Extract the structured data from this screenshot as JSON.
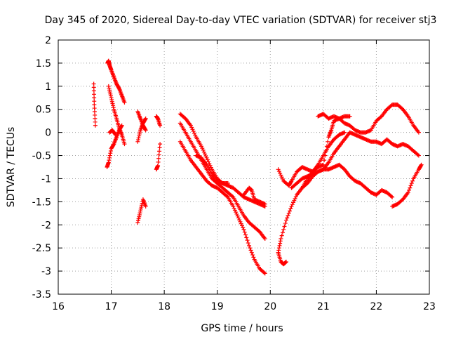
{
  "chart_data": {
    "type": "scatter",
    "title": "Day 345 of 2020, Sidereal Day-to-day VTEC variation (SDTVAR) for receiver stj3",
    "xlabel": "GPS time / hours",
    "ylabel": "SDTVAR / TECUs",
    "xlim": [
      16,
      23
    ],
    "ylim": [
      -3.5,
      2
    ],
    "xticks": [
      16,
      17,
      18,
      19,
      20,
      21,
      22,
      23
    ],
    "yticks": [
      -3.5,
      -3,
      -2.5,
      -2,
      -1.5,
      -1,
      -0.5,
      0,
      0.5,
      1,
      1.5,
      2
    ],
    "xtick_labels": [
      "16",
      "17",
      "18",
      "19",
      "20",
      "21",
      "22",
      "23"
    ],
    "ytick_labels": [
      "-3.5",
      "-3",
      "-2.5",
      "-2",
      "-1.5",
      "-1",
      "-0.5",
      "0",
      "0.5",
      "1",
      "1.5",
      "2"
    ],
    "grid": true,
    "marker": "+",
    "color": "#ff0000",
    "series": [
      {
        "name": "s1",
        "x": [
          16.67,
          16.68,
          16.7
        ],
        "y": [
          1.05,
          0.6,
          0.15
        ]
      },
      {
        "name": "s2",
        "x": [
          16.93,
          16.95,
          16.97,
          17.0,
          17.05,
          17.1,
          17.15,
          17.2,
          17.25
        ],
        "y": [
          1.5,
          1.55,
          1.45,
          1.35,
          1.2,
          1.05,
          0.95,
          0.8,
          0.65
        ]
      },
      {
        "name": "s3",
        "x": [
          16.95,
          17.0,
          17.05,
          17.1,
          17.15,
          17.2,
          17.25
        ],
        "y": [
          1.0,
          0.75,
          0.5,
          0.3,
          0.1,
          -0.05,
          -0.25
        ]
      },
      {
        "name": "s4",
        "x": [
          16.92,
          16.95,
          17.0,
          17.05,
          17.1,
          17.15,
          17.2
        ],
        "y": [
          -0.75,
          -0.65,
          -0.35,
          -0.25,
          -0.1,
          0.05,
          0.15
        ]
      },
      {
        "name": "s5",
        "x": [
          16.97,
          17.02,
          17.08
        ],
        "y": [
          0.0,
          0.05,
          -0.05
        ]
      },
      {
        "name": "s6",
        "x": [
          17.5,
          17.55,
          17.6,
          17.65
        ],
        "y": [
          0.45,
          0.3,
          0.15,
          0.05
        ]
      },
      {
        "name": "s7",
        "x": [
          17.5,
          17.55,
          17.6,
          17.65
        ],
        "y": [
          -0.2,
          0.05,
          0.2,
          0.3
        ]
      },
      {
        "name": "s8",
        "x": [
          17.5,
          17.55,
          17.6,
          17.65
        ],
        "y": [
          -1.95,
          -1.7,
          -1.45,
          -1.6
        ]
      },
      {
        "name": "s9",
        "x": [
          17.85,
          17.88,
          17.92
        ],
        "y": [
          0.35,
          0.3,
          0.15
        ]
      },
      {
        "name": "s10",
        "x": [
          17.85,
          17.88,
          17.92
        ],
        "y": [
          -0.8,
          -0.72,
          -0.25
        ]
      },
      {
        "name": "s11",
        "x": [
          18.3,
          18.4,
          18.5,
          18.6,
          18.7,
          18.8,
          18.9,
          19.0,
          19.1,
          19.2,
          19.3,
          19.4,
          19.5,
          19.6,
          19.7,
          19.8,
          19.9
        ],
        "y": [
          0.4,
          0.3,
          0.15,
          -0.1,
          -0.3,
          -0.55,
          -0.8,
          -1.0,
          -1.1,
          -1.15,
          -1.2,
          -1.3,
          -1.4,
          -1.45,
          -1.5,
          -1.55,
          -1.6
        ]
      },
      {
        "name": "s12",
        "x": [
          18.3,
          18.4,
          18.5,
          18.6,
          18.7,
          18.8,
          18.9,
          19.0,
          19.1,
          19.2,
          19.3,
          19.4,
          19.5,
          19.6,
          19.7,
          19.8,
          19.9
        ],
        "y": [
          0.2,
          0.0,
          -0.2,
          -0.4,
          -0.6,
          -0.8,
          -1.0,
          -1.1,
          -1.2,
          -1.3,
          -1.4,
          -1.6,
          -1.8,
          -1.95,
          -2.05,
          -2.15,
          -2.3
        ]
      },
      {
        "name": "s13",
        "x": [
          18.3,
          18.4,
          18.5,
          18.6,
          18.7,
          18.8,
          18.9,
          19.0,
          19.1,
          19.2,
          19.3,
          19.4,
          19.5,
          19.6,
          19.7,
          19.8,
          19.9
        ],
        "y": [
          -0.2,
          -0.4,
          -0.6,
          -0.75,
          -0.9,
          -1.05,
          -1.15,
          -1.2,
          -1.3,
          -1.4,
          -1.6,
          -1.85,
          -2.1,
          -2.45,
          -2.75,
          -2.95,
          -3.05
        ]
      },
      {
        "name": "s14",
        "x": [
          18.6,
          18.7,
          18.8,
          18.9,
          19.0,
          19.1,
          19.2
        ],
        "y": [
          -0.5,
          -0.55,
          -0.7,
          -0.9,
          -1.05,
          -1.1,
          -1.1
        ]
      },
      {
        "name": "s15",
        "x": [
          19.5,
          19.6,
          19.65,
          19.7,
          19.8,
          19.9
        ],
        "y": [
          -1.35,
          -1.2,
          -1.25,
          -1.45,
          -1.5,
          -1.55
        ]
      },
      {
        "name": "s16",
        "x": [
          20.15,
          20.2,
          20.25,
          20.3
        ],
        "y": [
          -2.6,
          -2.8,
          -2.85,
          -2.8
        ]
      },
      {
        "name": "s17",
        "x": [
          20.15,
          20.2,
          20.3,
          20.4,
          20.5,
          20.6,
          20.7,
          20.8,
          20.9,
          21.0,
          21.1,
          21.2,
          21.3,
          21.4,
          21.5,
          21.6,
          21.7,
          21.8,
          21.9,
          22.0,
          22.1,
          22.2,
          22.3
        ],
        "y": [
          -2.6,
          -2.3,
          -1.9,
          -1.6,
          -1.35,
          -1.2,
          -1.1,
          -0.95,
          -0.85,
          -0.8,
          -0.8,
          -0.75,
          -0.7,
          -0.8,
          -0.95,
          -1.05,
          -1.1,
          -1.2,
          -1.3,
          -1.35,
          -1.25,
          -1.3,
          -1.4
        ]
      },
      {
        "name": "s18",
        "x": [
          20.15,
          20.25,
          20.35,
          20.4,
          20.5,
          20.6,
          20.7,
          20.8,
          20.9,
          21.0,
          21.1,
          21.15,
          21.2,
          21.3,
          21.4,
          21.5,
          21.6,
          21.7,
          21.8,
          21.9,
          22.0,
          22.1,
          22.2,
          22.3,
          22.4,
          22.5,
          22.6,
          22.7,
          22.8
        ],
        "y": [
          -0.8,
          -1.05,
          -1.15,
          -1.05,
          -0.85,
          -0.75,
          -0.8,
          -0.85,
          -0.75,
          -0.7,
          -0.1,
          0.05,
          0.25,
          0.3,
          0.2,
          0.15,
          0.05,
          0.0,
          0.0,
          0.05,
          0.25,
          0.35,
          0.5,
          0.6,
          0.6,
          0.5,
          0.35,
          0.15,
          0.0
        ]
      },
      {
        "name": "s19",
        "x": [
          20.4,
          20.5,
          20.6,
          20.7,
          20.8,
          20.9,
          21.0,
          21.1,
          21.2,
          21.3,
          21.4,
          21.5,
          21.6,
          21.7,
          21.8,
          21.9,
          22.0,
          22.1,
          22.2,
          22.3,
          22.4,
          22.5,
          22.6,
          22.7,
          22.8
        ],
        "y": [
          -1.2,
          -1.1,
          -1.0,
          -0.95,
          -0.9,
          -0.85,
          -0.8,
          -0.65,
          -0.45,
          -0.3,
          -0.15,
          0.0,
          -0.05,
          -0.1,
          -0.15,
          -0.2,
          -0.2,
          -0.25,
          -0.15,
          -0.25,
          -0.3,
          -0.25,
          -0.3,
          -0.4,
          -0.5
        ]
      },
      {
        "name": "s20",
        "x": [
          20.6,
          20.7,
          20.8,
          20.9,
          21.0,
          21.1,
          21.2,
          21.3,
          21.4
        ],
        "y": [
          -1.2,
          -1.0,
          -0.85,
          -0.7,
          -0.5,
          -0.3,
          -0.15,
          -0.05,
          0.0
        ]
      },
      {
        "name": "s21",
        "x": [
          20.9,
          21.0,
          21.1,
          21.2,
          21.3,
          21.4,
          21.5
        ],
        "y": [
          0.35,
          0.4,
          0.3,
          0.35,
          0.3,
          0.35,
          0.35
        ]
      },
      {
        "name": "s22",
        "x": [
          22.3,
          22.4,
          22.5,
          22.6,
          22.7,
          22.8,
          22.85
        ],
        "y": [
          -1.6,
          -1.55,
          -1.45,
          -1.3,
          -1.0,
          -0.8,
          -0.7
        ]
      }
    ]
  }
}
